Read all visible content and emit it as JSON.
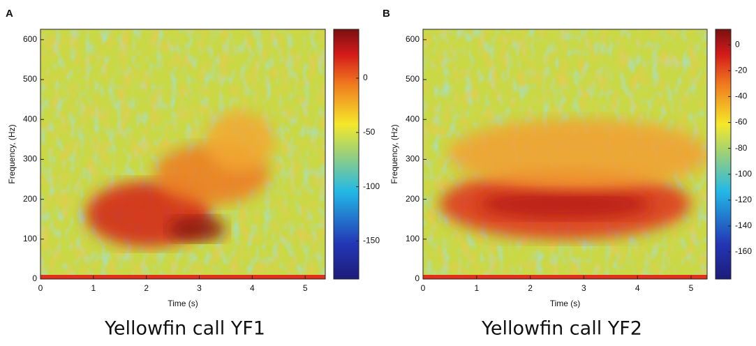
{
  "chart_data": [
    {
      "type": "spectrogram",
      "panel_label": "A",
      "title": "Yellowfin call YF1",
      "xlabel": "Time (s)",
      "ylabel": "Frequency, (Hz)",
      "xlim": [
        0,
        5.38
      ],
      "xticks": [
        0,
        1,
        2,
        3,
        4,
        5
      ],
      "ylim": [
        0,
        626
      ],
      "yticks": [
        0,
        100,
        200,
        300,
        400,
        500,
        600
      ],
      "colorbar_lim": [
        -185,
        45
      ],
      "colorbar_ticks": [
        -150,
        -100,
        -50,
        0
      ]
    },
    {
      "type": "spectrogram",
      "panel_label": "B",
      "title": "Yellowfin call YF2",
      "xlabel": "Time (s)",
      "ylabel": "Frequency, (Hz)",
      "xlim": [
        0,
        5.3
      ],
      "xticks": [
        0,
        1,
        2,
        3,
        4,
        5
      ],
      "ylim": [
        0,
        626
      ],
      "yticks": [
        0,
        100,
        200,
        300,
        400,
        500,
        600
      ],
      "colorbar_lim": [
        -181,
        12
      ],
      "colorbar_ticks": [
        -160,
        -140,
        -120,
        -100,
        -80,
        -60,
        -40,
        -20,
        0
      ]
    }
  ]
}
